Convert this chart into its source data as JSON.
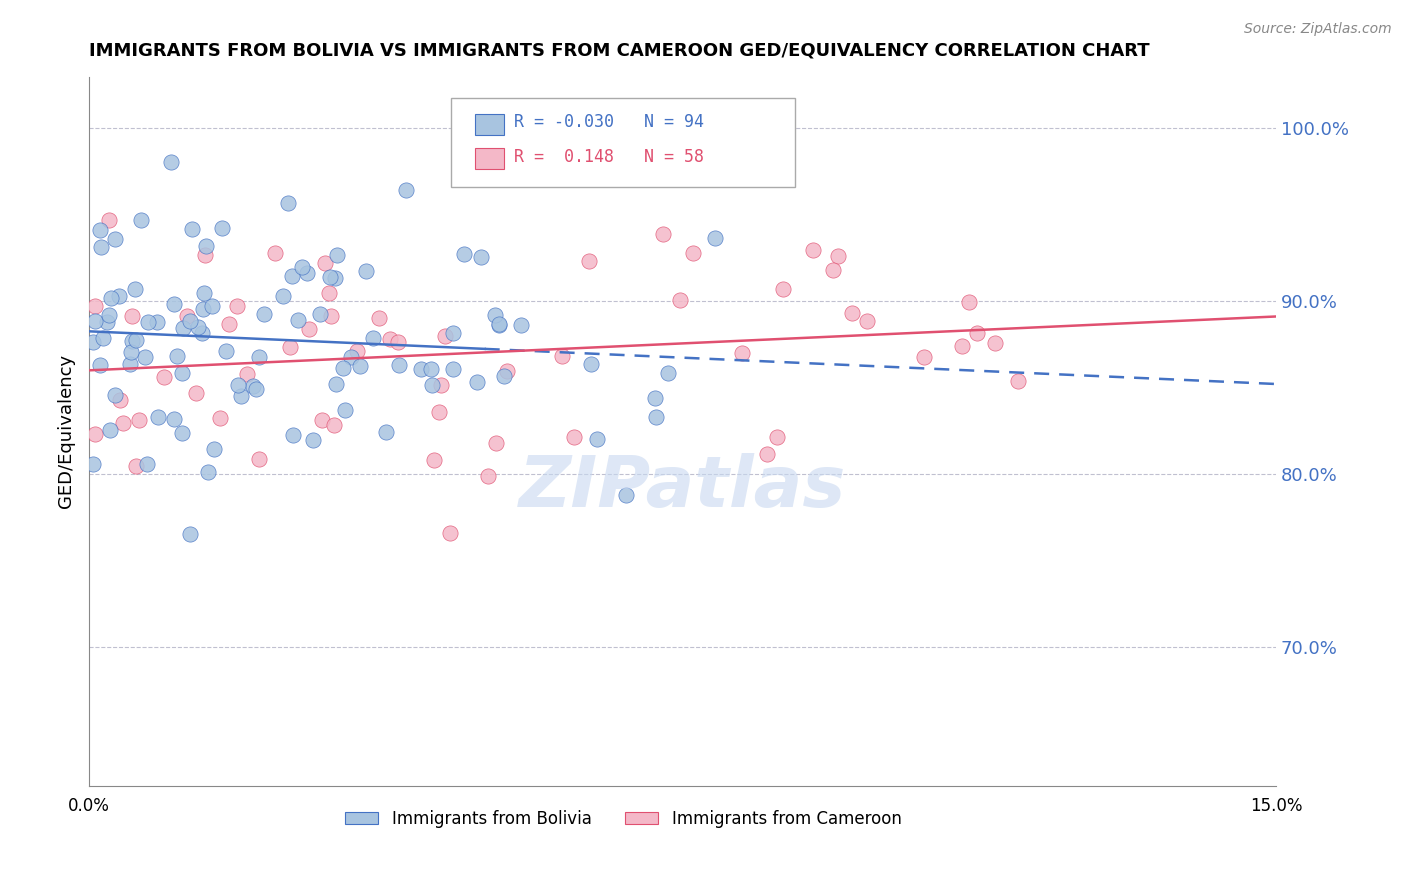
{
  "title": "IMMIGRANTS FROM BOLIVIA VS IMMIGRANTS FROM CAMEROON GED/EQUIVALENCY CORRELATION CHART",
  "source": "Source: ZipAtlas.com",
  "ylabel": "GED/Equivalency",
  "right_ytick_labels": [
    "100.0%",
    "90.0%",
    "80.0%",
    "70.0%"
  ],
  "right_ytick_values": [
    1.0,
    0.9,
    0.8,
    0.7
  ],
  "xmin": 0.0,
  "xmax": 0.15,
  "ymin": 0.62,
  "ymax": 1.03,
  "legend_bolivia": "Immigrants from Bolivia",
  "legend_cameroon": "Immigrants from Cameroon",
  "R_bolivia": -0.03,
  "N_bolivia": 94,
  "R_cameroon": 0.148,
  "N_cameroon": 58,
  "bolivia_color": "#a8c4e0",
  "bolivia_line_color": "#4472c4",
  "cameroon_color": "#f4b8c8",
  "cameroon_line_color": "#e05070",
  "watermark_color": "#c8d8f0"
}
